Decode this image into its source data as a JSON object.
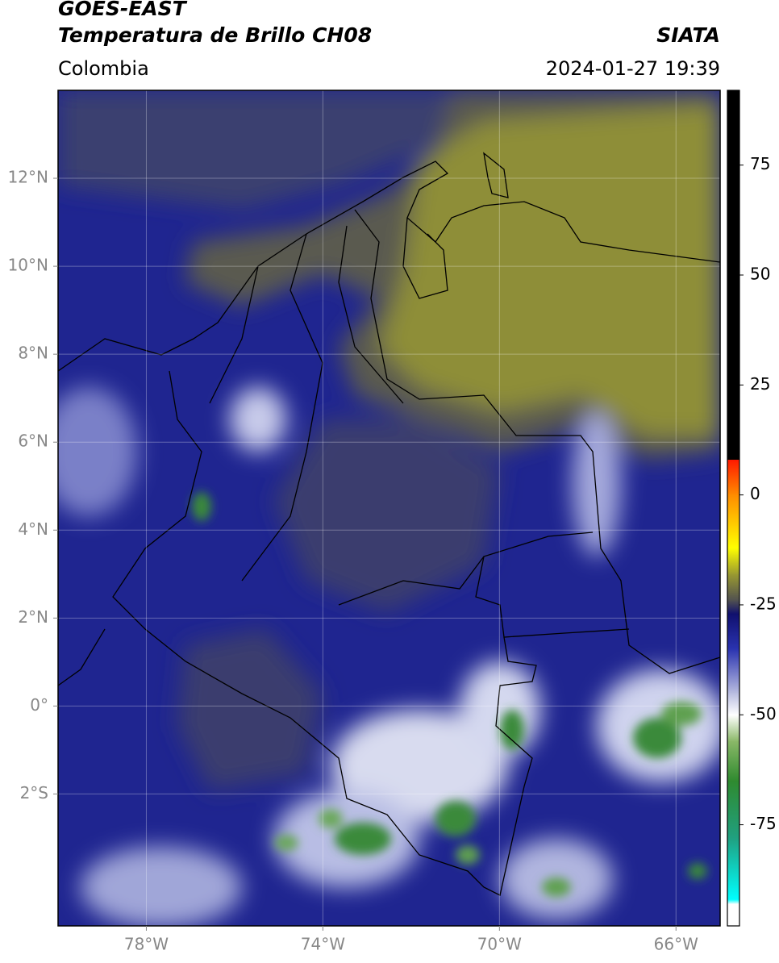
{
  "header": {
    "title": "GOES-EAST",
    "subtitle": "Temperatura de Brillo CH08",
    "source": "SIATA",
    "region": "Colombia",
    "timestamp": "2024-01-27 19:39"
  },
  "map": {
    "xlim": [
      -80,
      -65
    ],
    "ylim": [
      -5,
      14
    ],
    "xticks": [
      {
        "value": -78,
        "label": "78°W"
      },
      {
        "value": -74,
        "label": "74°W"
      },
      {
        "value": -70,
        "label": "70°W"
      },
      {
        "value": -66,
        "label": "66°W"
      }
    ],
    "yticks": [
      {
        "value": -2,
        "label": "2°S"
      },
      {
        "value": 0,
        "label": "0°"
      },
      {
        "value": 2,
        "label": "2°N"
      },
      {
        "value": 4,
        "label": "4°N"
      },
      {
        "value": 6,
        "label": "6°N"
      },
      {
        "value": 8,
        "label": "8°N"
      },
      {
        "value": 10,
        "label": "10°N"
      },
      {
        "value": 12,
        "label": "12°N"
      }
    ],
    "grid": true
  },
  "colorbar": {
    "lim": [
      -98,
      92
    ],
    "ticks": [
      75,
      50,
      25,
      0,
      -25,
      -50,
      -75
    ],
    "stops": [
      {
        "value": 92,
        "color": "#000000"
      },
      {
        "value": 8,
        "color": "#000000"
      },
      {
        "value": 8,
        "color": "#ff1a00"
      },
      {
        "value": 0,
        "color": "#ff8c00"
      },
      {
        "value": -12,
        "color": "#ffff00"
      },
      {
        "value": -18,
        "color": "#9a9a30"
      },
      {
        "value": -24,
        "color": "#505050"
      },
      {
        "value": -27,
        "color": "#10106e"
      },
      {
        "value": -35,
        "color": "#2a33b0"
      },
      {
        "value": -45,
        "color": "#b8bce0"
      },
      {
        "value": -50,
        "color": "#ffffff"
      },
      {
        "value": -56,
        "color": "#8ab868"
      },
      {
        "value": -65,
        "color": "#2f8a2f"
      },
      {
        "value": -78,
        "color": "#20a080"
      },
      {
        "value": -92,
        "color": "#00ffff"
      },
      {
        "value": -93,
        "color": "#ffffff"
      },
      {
        "value": -98,
        "color": "#ffffff"
      }
    ]
  }
}
